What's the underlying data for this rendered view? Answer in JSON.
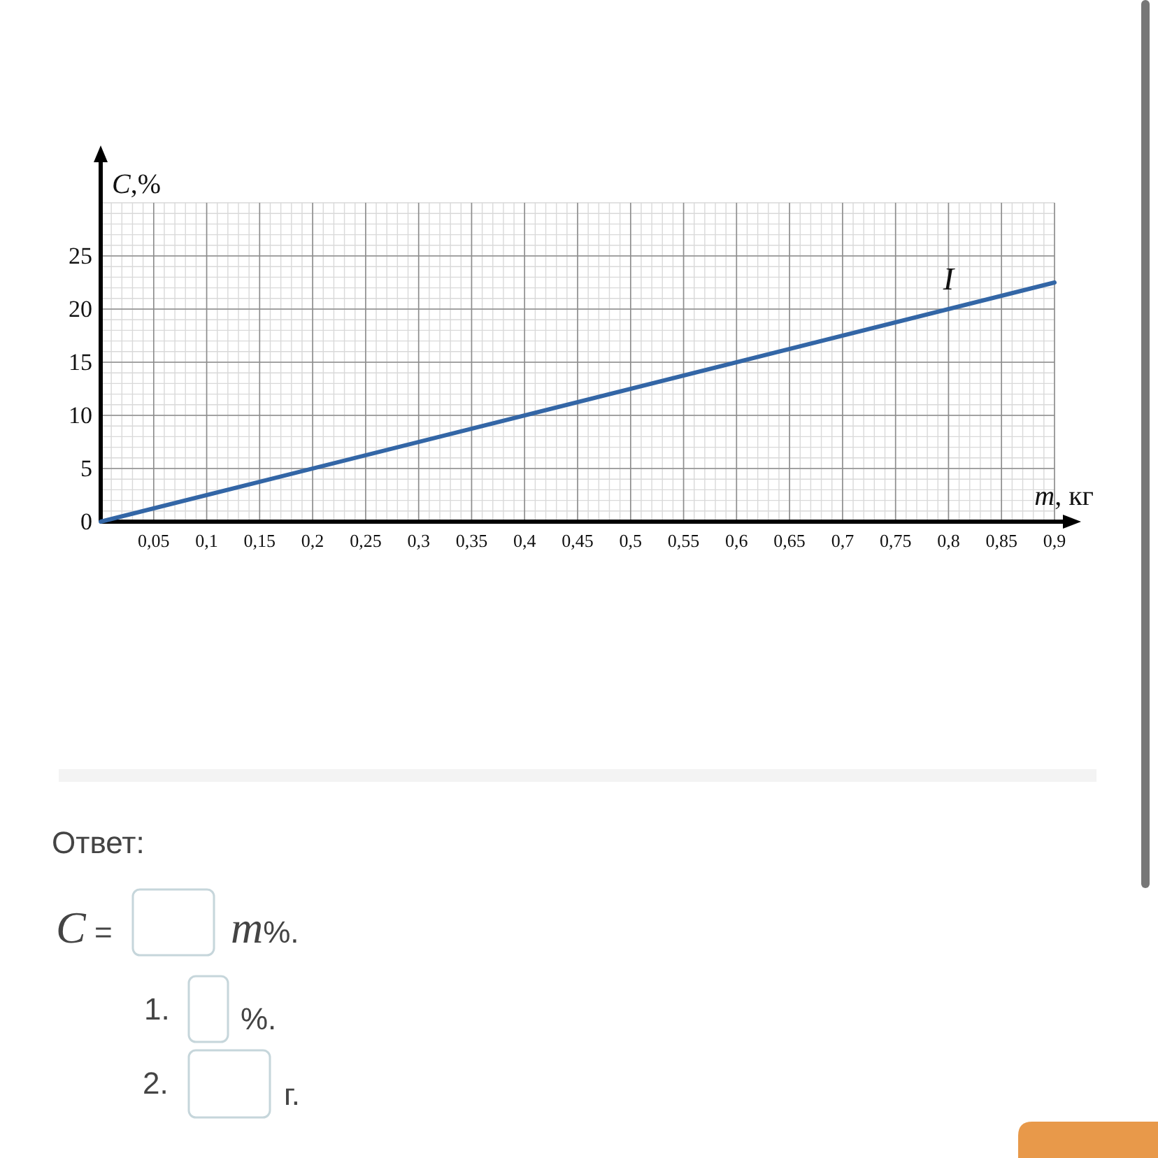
{
  "chart_data": {
    "type": "line",
    "xlabel": "m, кг",
    "ylabel": "C,%",
    "x": [
      0,
      0.9
    ],
    "series": [
      {
        "color": "#3366a6",
        "values": [
          0,
          22.5
        ]
      }
    ],
    "xlim": [
      0,
      0.9
    ],
    "ylim": [
      0,
      30
    ],
    "xticks": [
      {
        "value": 0.05,
        "label": "0,05"
      },
      {
        "value": 0.1,
        "label": "0,1"
      },
      {
        "value": 0.15,
        "label": "0,15"
      },
      {
        "value": 0.2,
        "label": "0,2"
      },
      {
        "value": 0.25,
        "label": "0,25"
      },
      {
        "value": 0.3,
        "label": "0,3"
      },
      {
        "value": 0.35,
        "label": "0,35"
      },
      {
        "value": 0.4,
        "label": "0,4"
      },
      {
        "value": 0.45,
        "label": "0,45"
      },
      {
        "value": 0.5,
        "label": "0,5"
      },
      {
        "value": 0.55,
        "label": "0,55"
      },
      {
        "value": 0.6,
        "label": "0,6"
      },
      {
        "value": 0.65,
        "label": "0,65"
      },
      {
        "value": 0.7,
        "label": "0,7"
      },
      {
        "value": 0.75,
        "label": "0,75"
      },
      {
        "value": 0.8,
        "label": "0,8"
      },
      {
        "value": 0.85,
        "label": "0,85"
      },
      {
        "value": 0.9,
        "label": "0,9"
      }
    ],
    "yticks": [
      0,
      5,
      10,
      15,
      20,
      25
    ],
    "grid": true,
    "annotations": [
      {
        "text": "I",
        "x": 0.8,
        "y": 20
      },
      "Ответ:",
      "C =",
      "m%.",
      "1.",
      "%.",
      "2.",
      "г."
    ]
  }
}
